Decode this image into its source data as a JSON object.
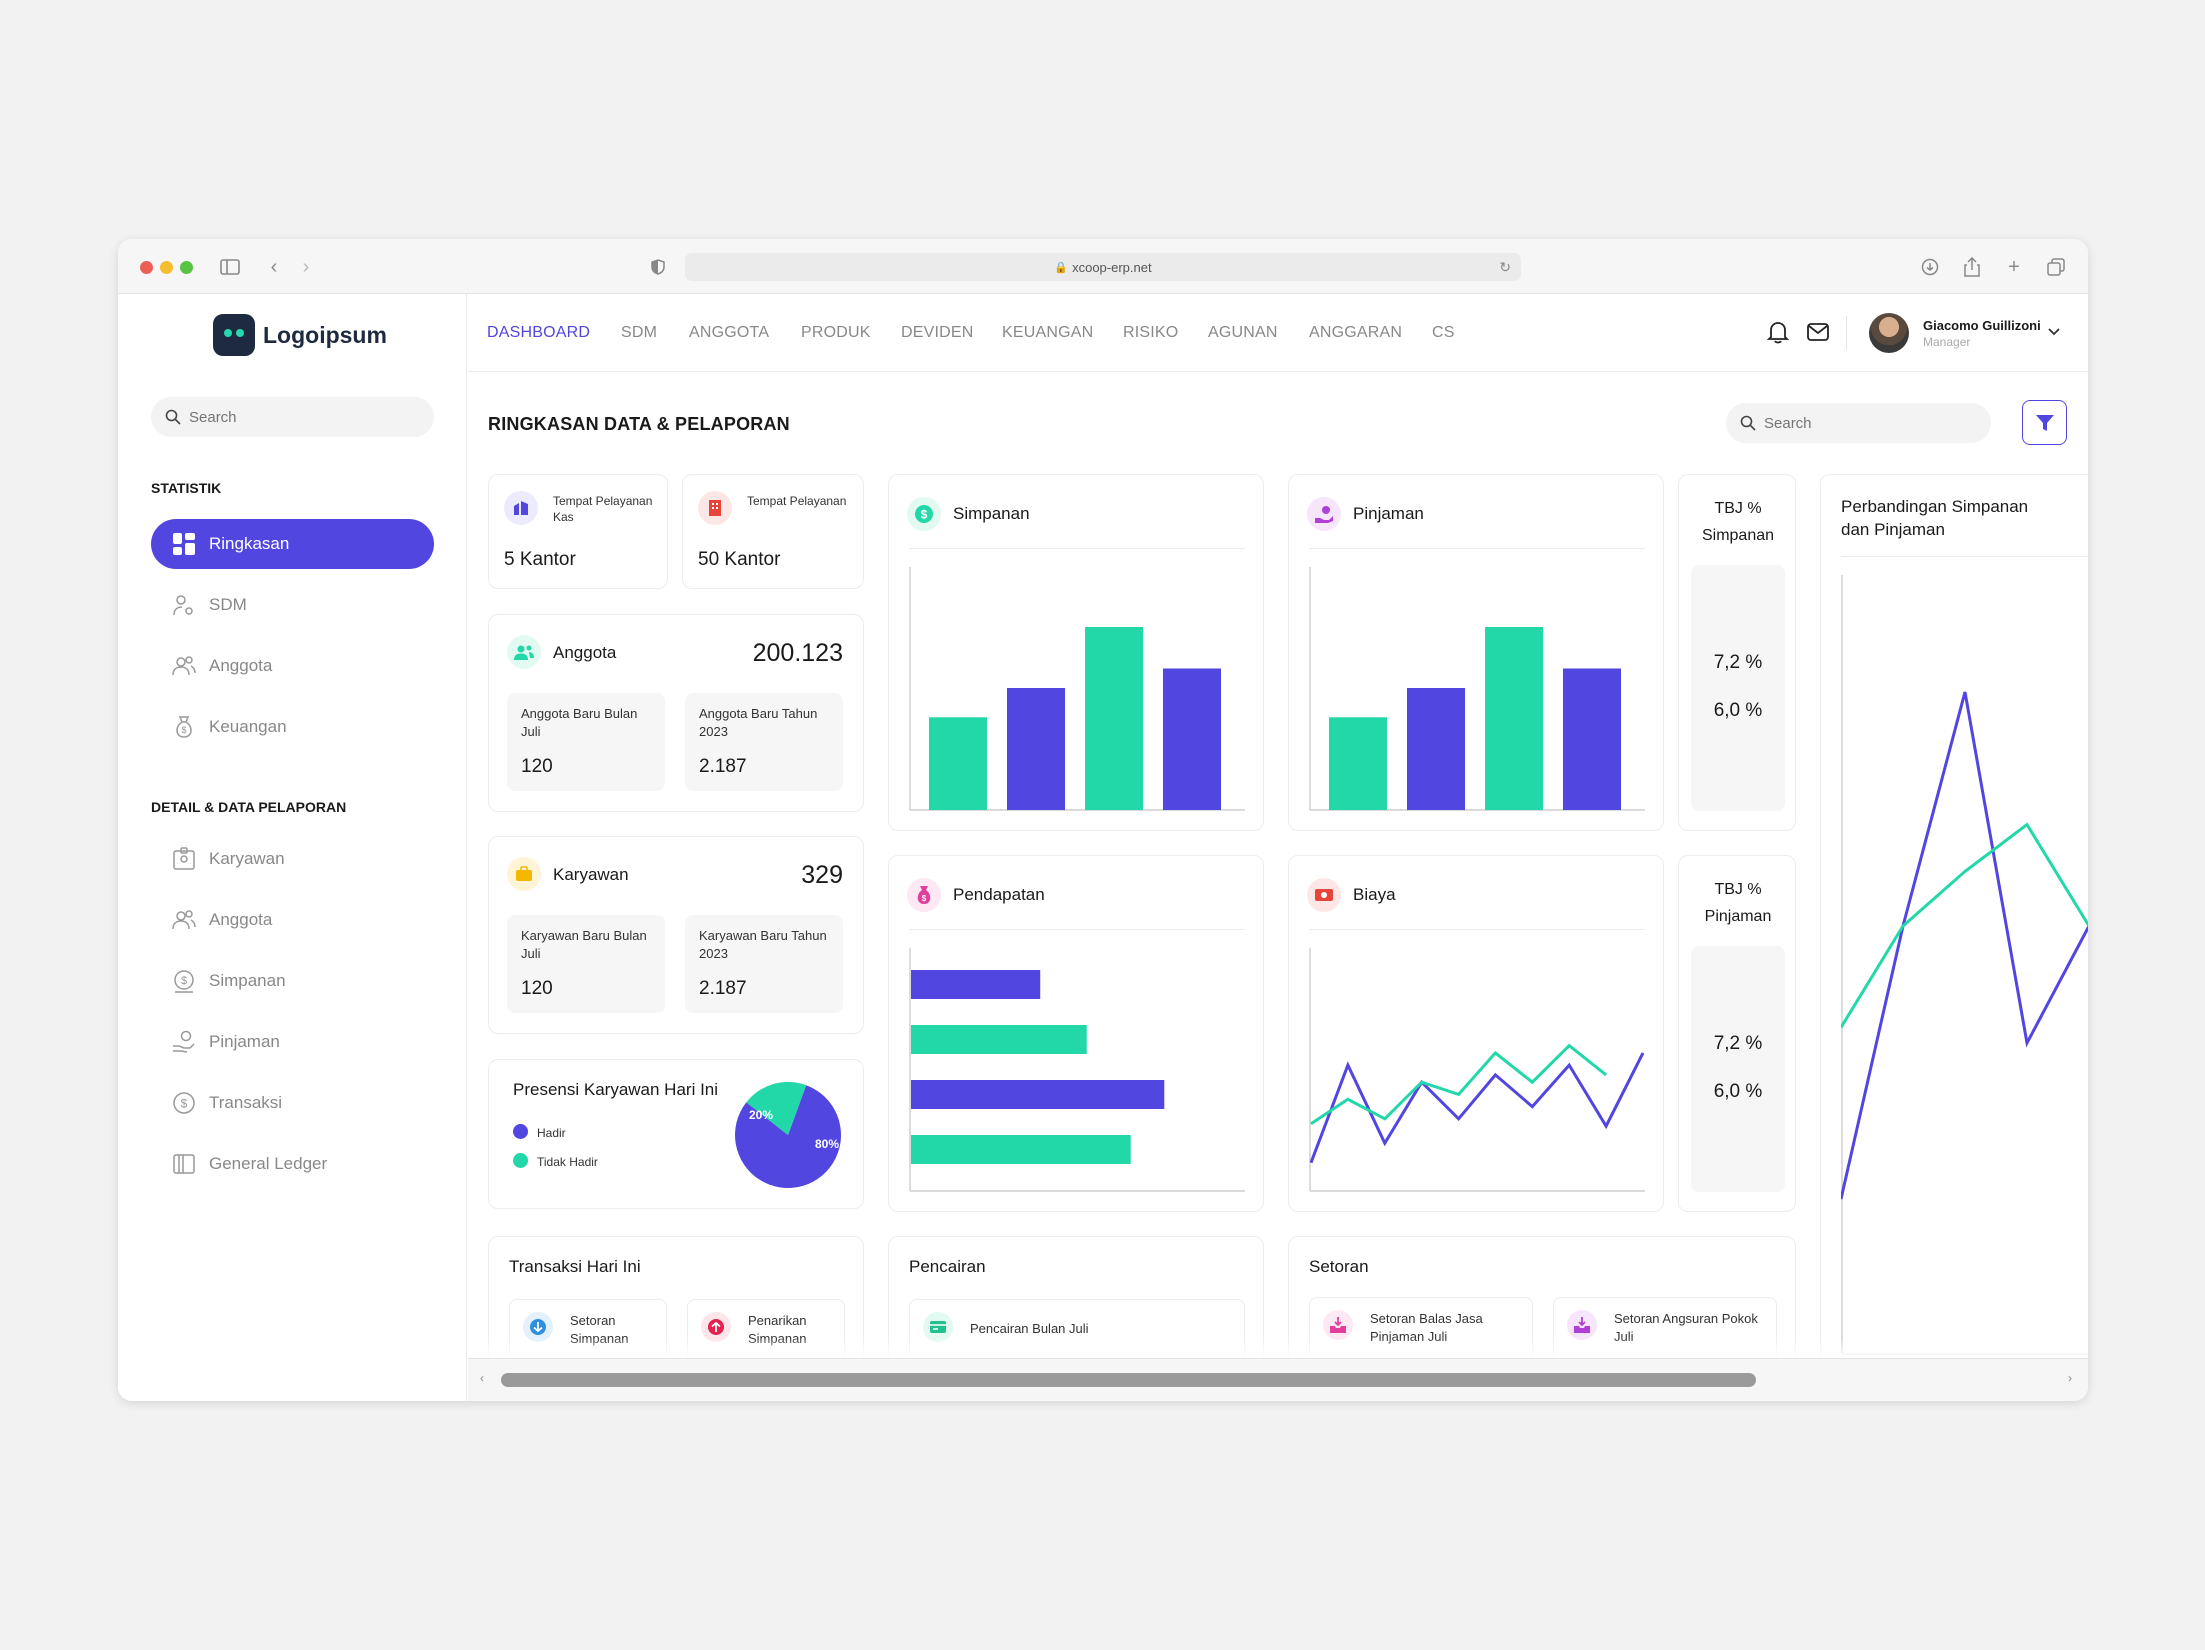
{
  "browser": {
    "url": "xcoop-erp.net"
  },
  "logo": {
    "text": "Logoipsum"
  },
  "sidebar": {
    "search_placeholder": "Search",
    "section_statistik": "STATISTIK",
    "statistik_items": [
      {
        "label": "Ringkasan",
        "icon": "grid-icon",
        "active": true
      },
      {
        "label": "SDM",
        "icon": "user-gear-icon"
      },
      {
        "label": "Anggota",
        "icon": "users-icon"
      },
      {
        "label": "Keuangan",
        "icon": "money-bag-icon"
      }
    ],
    "section_detail": "DETAIL & DATA PELAPORAN",
    "detail_items": [
      {
        "label": "Karyawan",
        "icon": "id-badge-icon"
      },
      {
        "label": "Anggota",
        "icon": "users-icon"
      },
      {
        "label": "Simpanan",
        "icon": "coin-icon"
      },
      {
        "label": "Pinjaman",
        "icon": "hand-coin-icon"
      },
      {
        "label": "Transaksi",
        "icon": "dollar-circle-icon"
      },
      {
        "label": "General Ledger",
        "icon": "book-icon"
      }
    ]
  },
  "nav": {
    "items": [
      "DASHBOARD",
      "SDM",
      "ANGGOTA",
      "PRODUK",
      "DEVIDEN",
      "KEUANGAN",
      "RISIKO",
      "AGUNAN",
      "ANGGARAN",
      "CS"
    ],
    "active": "DASHBOARD"
  },
  "user": {
    "name": "Giacomo Guillizoni",
    "role": "Manager"
  },
  "page": {
    "title": "RINGKASAN DATA & PELAPORAN",
    "search_placeholder": "Search"
  },
  "offices": [
    {
      "label": "Tempat Pelayanan Kas",
      "value": "5 Kantor",
      "color": "#5146e0"
    },
    {
      "label": "Tempat Pelayanan",
      "value": "50 Kantor",
      "color": "#e8443a"
    }
  ],
  "anggota": {
    "title": "Anggota",
    "total": "200.123",
    "new_month_label": "Anggota Baru Bulan Juli",
    "new_month_value": "120",
    "new_year_label": "Anggota Baru Tahun 2023",
    "new_year_value": "2.187"
  },
  "karyawan": {
    "title": "Karyawan",
    "total": "329",
    "new_month_label": "Karyawan Baru Bulan Juli",
    "new_month_value": "120",
    "new_year_label": "Karyawan  Baru Tahun 2023",
    "new_year_value": "2.187"
  },
  "presensi": {
    "title": "Presensi Karyawan Hari Ini",
    "legend_hadir": "Hadir",
    "legend_tidak_hadir": "Tidak Hadir",
    "label_hadir": "80%",
    "label_tidak_hadir": "20%"
  },
  "simpanan": {
    "title": "Simpanan"
  },
  "pinjaman": {
    "title": "Pinjaman"
  },
  "pendapatan": {
    "title": "Pendapatan"
  },
  "biaya": {
    "title": "Biaya"
  },
  "tbj_simpanan": {
    "title_line1": "TBJ %",
    "title_line2": "Simpanan",
    "value1": "7,2 %",
    "value2": "6,0 %"
  },
  "tbj_pinjaman": {
    "title_line1": "TBJ %",
    "title_line2": "Pinjaman",
    "value1": "7,2 %",
    "value2": "6,0 %"
  },
  "perbandingan": {
    "title_line1": "Perbandingan Simpanan",
    "title_line2": "dan Pinjaman"
  },
  "transaksi": {
    "title": "Transaksi Hari Ini",
    "setoran_line1": "Setoran",
    "setoran_line2": "Simpanan",
    "penarikan_line1": "Penarikan",
    "penarikan_line2": "Simpanan"
  },
  "pencairan": {
    "title": "Pencairan",
    "item": "Pencairan Bulan Juli"
  },
  "setoran": {
    "title": "Setoran",
    "item1_line1": "Setoran Balas Jasa",
    "item1_line2": "Pinjaman Juli",
    "item2_line1": "Setoran Angsuran Pokok",
    "item2_line2": "Juli"
  },
  "colors": {
    "accent": "#5146e0",
    "teal": "#22d8a8",
    "text": "#1a1a1a"
  },
  "chart_data": [
    {
      "id": "simpanan",
      "type": "bar",
      "values": [
        38,
        50,
        75,
        58
      ],
      "ylim": [
        0,
        100
      ],
      "colors": [
        "#22d8a8",
        "#5146e0",
        "#22d8a8",
        "#5146e0"
      ]
    },
    {
      "id": "pinjaman",
      "type": "bar",
      "values": [
        38,
        50,
        75,
        58
      ],
      "ylim": [
        0,
        100
      ],
      "colors": [
        "#22d8a8",
        "#5146e0",
        "#22d8a8",
        "#5146e0"
      ]
    },
    {
      "id": "pendapatan",
      "type": "bar",
      "orientation": "horizontal",
      "values": [
        50,
        68,
        98,
        85
      ],
      "xlim": [
        0,
        130
      ],
      "colors": [
        "#5146e0",
        "#22d8a8",
        "#5146e0",
        "#22d8a8"
      ]
    },
    {
      "id": "biaya",
      "type": "line",
      "ylim": [
        0,
        100
      ],
      "series": [
        {
          "color": "#5146e0",
          "values": [
            12,
            52,
            20,
            45,
            30,
            48,
            35,
            52,
            27,
            57
          ]
        },
        {
          "color": "#22d8a8",
          "values": [
            28,
            38,
            30,
            45,
            40,
            57,
            45,
            60,
            48,
            null
          ]
        }
      ]
    },
    {
      "id": "perbandingan",
      "type": "line",
      "ylim": [
        0,
        100
      ],
      "series": [
        {
          "color": "#5146e0",
          "values": [
            20,
            55,
            85,
            40,
            55
          ]
        },
        {
          "color": "#22d8a8",
          "values": [
            42,
            55,
            62,
            68,
            55
          ]
        }
      ]
    },
    {
      "id": "presensi",
      "type": "pie",
      "values": [
        80,
        20
      ],
      "labels": [
        "Hadir",
        "Tidak Hadir"
      ],
      "colors": [
        "#5146e0",
        "#22d8a8"
      ]
    }
  ]
}
